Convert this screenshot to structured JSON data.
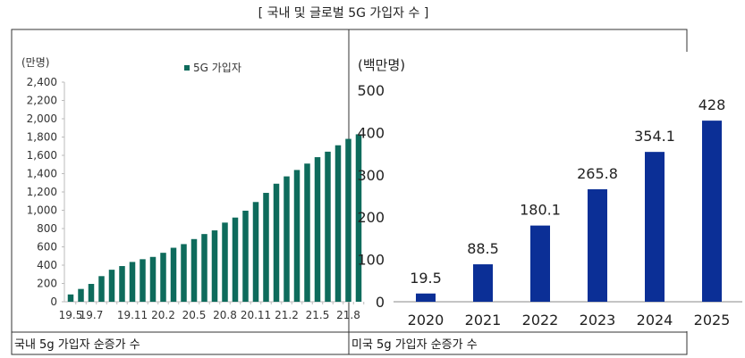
{
  "title": "[ 국내 및 글로벌 5G 가입자 수 ]",
  "captions": {
    "left": "국내 5g 가입자 순증가 수",
    "right": "미국 5g 가입자 순증가 수"
  },
  "chart_data": [
    {
      "type": "bar",
      "ylabel": "(만명)",
      "legend": "5G 가입자",
      "legend_position": "top-center",
      "color": "#0e6b5c",
      "ylim": [
        0,
        2400
      ],
      "yticks": [
        0,
        200,
        400,
        600,
        800,
        1000,
        1200,
        1400,
        1600,
        1800,
        2000,
        2200,
        2400
      ],
      "ytick_labels": [
        "0",
        "200",
        "400",
        "600",
        "800",
        "1,000",
        "1,200",
        "1,400",
        "1,600",
        "1,800",
        "2,000",
        "2,200",
        "2,400"
      ],
      "xtick_labels": [
        {
          "i": 0,
          "label": "19.5"
        },
        {
          "i": 2,
          "label": "19.7"
        },
        {
          "i": 6,
          "label": "19.11"
        },
        {
          "i": 9,
          "label": "20.2"
        },
        {
          "i": 12,
          "label": "20.5"
        },
        {
          "i": 15,
          "label": "20.8"
        },
        {
          "i": 18,
          "label": "20.11"
        },
        {
          "i": 21,
          "label": "21.2"
        },
        {
          "i": 24,
          "label": "21.5"
        },
        {
          "i": 27,
          "label": "21.8"
        }
      ],
      "values": [
        80,
        140,
        195,
        280,
        350,
        390,
        435,
        465,
        490,
        535,
        590,
        630,
        685,
        740,
        780,
        865,
        920,
        995,
        1090,
        1190,
        1290,
        1370,
        1440,
        1510,
        1580,
        1640,
        1710,
        1780,
        1830
      ]
    },
    {
      "type": "bar",
      "ylabel": "(백만명)",
      "color": "#0b2f96",
      "ylim": [
        0,
        500
      ],
      "yticks": [
        0,
        100,
        200,
        300,
        400,
        500
      ],
      "categories": [
        "2020",
        "2021",
        "2022",
        "2023",
        "2024",
        "2025"
      ],
      "values": [
        19.5,
        88.5,
        180.1,
        265.8,
        354.1,
        428
      ],
      "data_labels": [
        "19.5",
        "88.5",
        "180.1",
        "265.8",
        "354.1",
        "428"
      ]
    }
  ]
}
